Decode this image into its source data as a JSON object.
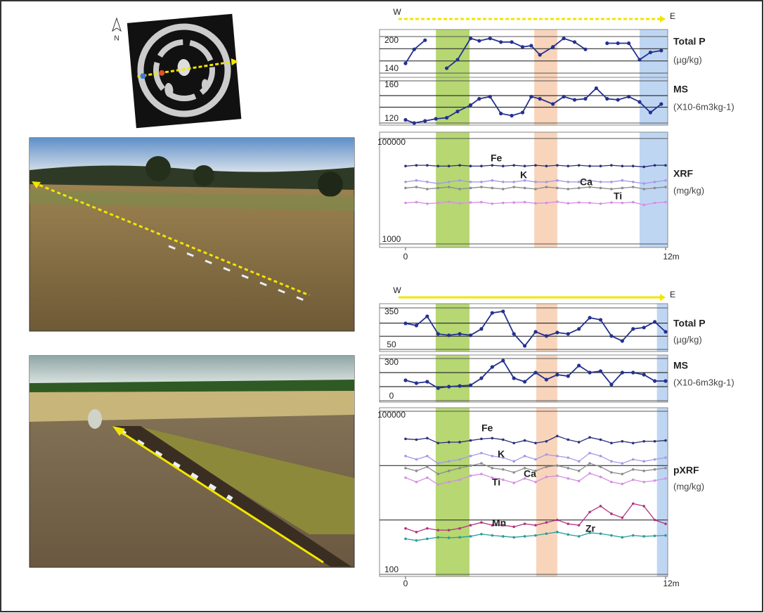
{
  "figure": {
    "north_label": "N"
  },
  "chart_data": [
    {
      "type": "line",
      "title": "Total P",
      "unit": "(µg/kg)",
      "direction_labels": [
        "W",
        "E"
      ],
      "xlim": [
        0,
        12
      ],
      "ylim": [
        140,
        200
      ],
      "yticks": [
        140,
        200
      ],
      "reference_lines": [
        160,
        180
      ],
      "bands": [
        {
          "from": 1.4,
          "to": 2.95,
          "color": "#9dc943"
        },
        {
          "from": 5.94,
          "to": 7.0,
          "color": "#f6c6a4"
        },
        {
          "from": 10.8,
          "to": 12.1,
          "color": "#a9c8ef"
        }
      ],
      "x": [
        0,
        0.4,
        0.9,
        1.4,
        1.9,
        2.4,
        3.0,
        3.4,
        3.9,
        4.4,
        4.9,
        5.4,
        5.8,
        6.2,
        6.8,
        7.3,
        7.8,
        8.3,
        8.8,
        9.3,
        9.8,
        10.3,
        10.8,
        11.3,
        11.8
      ],
      "series": [
        {
          "name": "Total P",
          "color": "#23318f",
          "values": [
            156,
            179,
            194,
            null,
            148,
            162,
            197,
            193,
            197,
            191,
            191,
            183,
            185,
            170,
            183,
            197,
            191,
            179,
            null,
            189,
            189,
            189,
            162,
            174,
            177
          ]
        }
      ]
    },
    {
      "type": "line",
      "title": "MS",
      "unit": "(X10-6m3kg-1)",
      "xlim": [
        0,
        12
      ],
      "ylim": [
        120,
        160
      ],
      "yticks": [
        120,
        160
      ],
      "reference_lines": [
        135,
        146
      ],
      "bands": [
        {
          "from": 1.4,
          "to": 2.95,
          "color": "#9dc943"
        },
        {
          "from": 5.94,
          "to": 7.0,
          "color": "#f6c6a4"
        },
        {
          "from": 10.8,
          "to": 12.1,
          "color": "#a9c8ef"
        }
      ],
      "x": [
        0,
        0.4,
        0.9,
        1.4,
        1.9,
        2.4,
        3.0,
        3.4,
        3.9,
        4.4,
        4.9,
        5.4,
        5.8,
        6.2,
        6.8,
        7.3,
        7.8,
        8.3,
        8.8,
        9.3,
        9.8,
        10.3,
        10.8,
        11.3,
        11.8
      ],
      "series": [
        {
          "name": "MS",
          "color": "#23318f",
          "values": [
            123,
            120,
            122,
            124,
            125,
            131,
            137,
            143,
            145,
            129,
            127,
            130,
            145,
            143,
            138,
            145,
            142,
            143,
            153,
            143,
            142,
            145,
            140,
            130,
            138
          ]
        }
      ]
    },
    {
      "type": "line",
      "title": "XRF",
      "unit": "(mg/kg)",
      "log": true,
      "show_series_names": true,
      "xlim": [
        0,
        12
      ],
      "ylim": [
        1000,
        100000
      ],
      "yticks": [
        1000,
        100000
      ],
      "xticks": [
        0,
        {
          "value": 12,
          "label": "12m"
        }
      ],
      "bands": [
        {
          "from": 1.4,
          "to": 2.95,
          "color": "#9dc943"
        },
        {
          "from": 5.94,
          "to": 7.0,
          "color": "#f6c6a4"
        },
        {
          "from": 10.8,
          "to": 12.1,
          "color": "#a9c8ef"
        }
      ],
      "x": [
        0,
        0.5,
        1,
        1.5,
        2,
        2.5,
        3,
        3.5,
        4,
        4.5,
        5,
        5.5,
        6,
        6.5,
        7,
        7.5,
        8,
        8.5,
        9,
        9.5,
        10,
        10.5,
        11,
        11.5,
        12
      ],
      "series": [
        {
          "name": "Fe",
          "color": "#2b2f7a",
          "values": [
            30000,
            31000,
            31000,
            30000,
            30000,
            31000,
            30000,
            30000,
            31000,
            30000,
            31000,
            30000,
            31000,
            30000,
            31000,
            30000,
            31000,
            30000,
            30000,
            31000,
            30000,
            30000,
            29000,
            31000,
            31000
          ]
        },
        {
          "name": "K",
          "color": "#a59ae6",
          "values": [
            15000,
            16000,
            15000,
            14000,
            15000,
            16000,
            15000,
            15000,
            16000,
            15000,
            15000,
            16000,
            15000,
            15000,
            16000,
            15000,
            15000,
            16000,
            15000,
            15000,
            16000,
            15000,
            14000,
            15000,
            16000
          ]
        },
        {
          "name": "Ca",
          "color": "#8c8c8c",
          "values": [
            11500,
            12000,
            11000,
            11500,
            12000,
            11000,
            11500,
            12000,
            11500,
            11000,
            12000,
            11500,
            11000,
            12000,
            11500,
            11000,
            11500,
            12000,
            11500,
            11000,
            11500,
            12000,
            11000,
            11500,
            12000
          ]
        },
        {
          "name": "Ti",
          "color": "#d48fe2",
          "values": [
            6000,
            6200,
            5800,
            6000,
            6300,
            5900,
            6100,
            6200,
            5800,
            6000,
            6100,
            6200,
            5900,
            6000,
            6300,
            5900,
            6100,
            6000,
            5800,
            6100,
            6000,
            6200,
            5500,
            6000,
            6200
          ]
        }
      ]
    },
    {
      "type": "line",
      "title": "Total P",
      "unit": "(µg/kg)",
      "direction_labels": [
        "W",
        "E"
      ],
      "xlim": [
        0,
        12
      ],
      "ylim": [
        50,
        350
      ],
      "yticks": [
        50,
        350
      ],
      "reference_lines": [
        145,
        240
      ],
      "bands": [
        {
          "from": 1.39,
          "to": 2.95,
          "color": "#9dc943"
        },
        {
          "from": 6.03,
          "to": 7.0,
          "color": "#f6c6a4"
        },
        {
          "from": 11.6,
          "to": 12.1,
          "color": "#a9c8ef"
        }
      ],
      "x": [
        0,
        0.5,
        1,
        1.5,
        2,
        2.5,
        3,
        3.5,
        4,
        4.5,
        5,
        5.5,
        6,
        6.5,
        7,
        7.5,
        8,
        8.5,
        9,
        9.5,
        10,
        10.5,
        11,
        11.5,
        12
      ],
      "series": [
        {
          "name": "Total P",
          "color": "#23318f",
          "values": [
            238,
            223,
            289,
            162,
            152,
            162,
            152,
            198,
            314,
            325,
            162,
            75,
            177,
            147,
            172,
            162,
            198,
            279,
            264,
            147,
            111,
            198,
            208,
            249,
            177
          ]
        }
      ]
    },
    {
      "type": "line",
      "title": "MS",
      "unit": "(X10-6m3kg-1)",
      "xlim": [
        0,
        12
      ],
      "ylim": [
        0,
        300
      ],
      "yticks": [
        0,
        300
      ],
      "reference_lines": [
        100,
        200
      ],
      "bands": [
        {
          "from": 1.39,
          "to": 2.95,
          "color": "#9dc943"
        },
        {
          "from": 6.03,
          "to": 7.0,
          "color": "#f6c6a4"
        },
        {
          "from": 11.6,
          "to": 12.1,
          "color": "#a9c8ef"
        }
      ],
      "x": [
        0,
        0.5,
        1,
        1.5,
        2,
        2.5,
        3,
        3.5,
        4,
        4.5,
        5,
        5.5,
        6,
        6.5,
        7,
        7.5,
        8,
        8.5,
        9,
        9.5,
        10,
        10.5,
        11,
        11.5,
        12
      ],
      "series": [
        {
          "name": "MS",
          "color": "#23318f",
          "values": [
            145,
            125,
            135,
            90,
            100,
            105,
            110,
            160,
            240,
            285,
            160,
            135,
            200,
            150,
            185,
            175,
            250,
            200,
            210,
            115,
            200,
            200,
            185,
            140,
            140
          ]
        }
      ]
    },
    {
      "type": "line",
      "title": "pXRF",
      "unit": "(mg/kg)",
      "log": true,
      "show_series_names": true,
      "xlim": [
        0,
        12
      ],
      "ylim": [
        100,
        100000
      ],
      "yticks": [
        100,
        100000
      ],
      "reference_lines": [
        1000,
        10000
      ],
      "xticks": [
        0,
        {
          "value": 12,
          "label": "12m"
        }
      ],
      "bands": [
        {
          "from": 1.39,
          "to": 2.95,
          "color": "#9dc943"
        },
        {
          "from": 6.03,
          "to": 7.0,
          "color": "#f6c6a4"
        },
        {
          "from": 11.6,
          "to": 12.1,
          "color": "#a9c8ef"
        }
      ],
      "x": [
        0,
        0.5,
        1,
        1.5,
        2,
        2.5,
        3,
        3.5,
        4,
        4.5,
        5,
        5.5,
        6,
        6.5,
        7,
        7.5,
        8,
        8.5,
        9,
        9.5,
        10,
        10.5,
        11,
        11.5,
        12
      ],
      "series": [
        {
          "name": "Fe",
          "color": "#2b2f7a",
          "values": [
            31000,
            30000,
            32000,
            26000,
            27000,
            27000,
            29000,
            31000,
            32000,
            30000,
            26000,
            29000,
            26000,
            28000,
            35000,
            30000,
            27000,
            33000,
            30000,
            26000,
            28000,
            26000,
            28000,
            28000,
            29000
          ]
        },
        {
          "name": "K",
          "color": "#a59ae6",
          "values": [
            15000,
            13000,
            15000,
            11000,
            12000,
            13000,
            15000,
            17000,
            15000,
            14000,
            12000,
            15000,
            13000,
            16000,
            15000,
            14000,
            12000,
            17000,
            15000,
            12000,
            11000,
            13000,
            12000,
            13000,
            14000
          ]
        },
        {
          "name": "Ca",
          "color": "#8c8c8c",
          "values": [
            9000,
            8000,
            9500,
            7000,
            8000,
            9000,
            10000,
            11000,
            9000,
            8500,
            7500,
            9000,
            8000,
            9500,
            10000,
            9000,
            8000,
            11000,
            9500,
            7500,
            7000,
            8500,
            8000,
            8500,
            9000
          ]
        },
        {
          "name": "Ti",
          "color": "#d48fe2",
          "values": [
            6000,
            5000,
            6000,
            4500,
            5000,
            5500,
            6500,
            7000,
            6000,
            5500,
            4800,
            5800,
            5000,
            6200,
            6500,
            5800,
            5200,
            7200,
            6200,
            5000,
            4600,
            5500,
            5000,
            5300,
            5800
          ]
        },
        {
          "name": "Mn",
          "color": "#b3327f",
          "values": [
            700,
            600,
            700,
            650,
            650,
            700,
            800,
            900,
            800,
            800,
            750,
            850,
            800,
            900,
            1000,
            850,
            800,
            1400,
            1800,
            1300,
            1100,
            2000,
            1800,
            1000,
            850
          ]
        },
        {
          "name": "Zr",
          "color": "#2a9c9c",
          "values": [
            450,
            420,
            450,
            480,
            470,
            480,
            500,
            550,
            520,
            500,
            480,
            500,
            520,
            560,
            600,
            540,
            500,
            580,
            560,
            520,
            480,
            520,
            500,
            510,
            520
          ]
        }
      ]
    }
  ]
}
